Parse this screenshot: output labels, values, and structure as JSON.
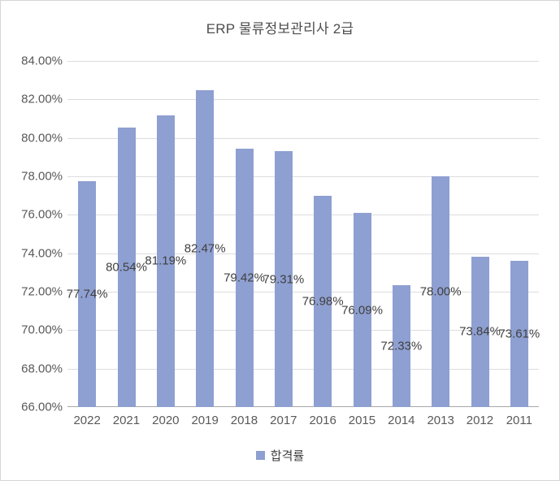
{
  "chart_data": {
    "type": "bar",
    "title": "ERP 물류정보관리사 2급",
    "xlabel": "",
    "ylabel": "",
    "categories": [
      "2022",
      "2021",
      "2020",
      "2019",
      "2018",
      "2017",
      "2016",
      "2015",
      "2014",
      "2013",
      "2012",
      "2011"
    ],
    "series": [
      {
        "name": "합격률",
        "values": [
          77.74,
          80.54,
          81.19,
          82.47,
          79.42,
          79.31,
          76.98,
          76.09,
          72.33,
          78.0,
          73.84,
          73.61
        ],
        "data_labels": [
          "77.74%",
          "80.54%",
          "81.19%",
          "82.47%",
          "79.42%",
          "79.31%",
          "76.98%",
          "76.09%",
          "72.33%",
          "78.00%",
          "73.84%",
          "73.61%"
        ]
      }
    ],
    "ylim": [
      66,
      84
    ],
    "ytick_step": 2,
    "ytick_labels_top_to_bottom": [
      "84.00%",
      "82.00%",
      "80.00%",
      "78.00%",
      "76.00%",
      "74.00%",
      "72.00%",
      "70.00%",
      "68.00%",
      "66.00%"
    ],
    "grid": true,
    "data_label_position": "inside-center",
    "legend": {
      "position": "bottom",
      "entries": [
        "합격률"
      ]
    },
    "colors": {
      "bar_fill": "#8e9fd1",
      "gridline": "#dcdcdc",
      "axis_line": "#a8a8a8",
      "title_text": "#4d4d4d",
      "tick_text": "#595959",
      "data_label_text": "#404040",
      "chart_border": "#d6d6d6",
      "background": "#ffffff"
    }
  }
}
